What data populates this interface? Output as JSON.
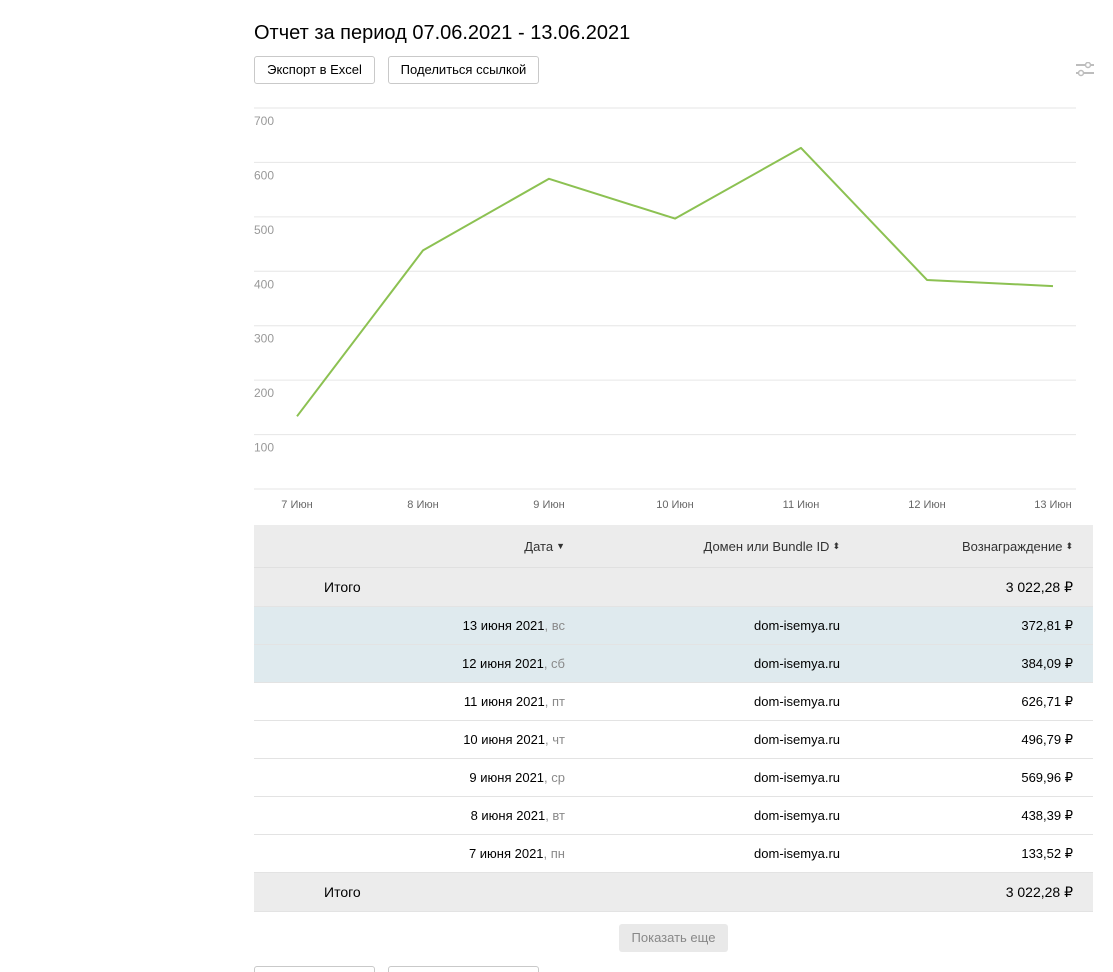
{
  "report": {
    "title": "Отчет за период 07.06.2021 - 13.06.2021"
  },
  "toolbar": {
    "export_label": "Экспорт в Excel",
    "share_label": "Поделиться ссылкой",
    "settings_icon": "sliders-icon"
  },
  "chart_data": {
    "type": "line",
    "categories": [
      "7 Июн",
      "8 Июн",
      "9 Июн",
      "10 Июн",
      "11 Июн",
      "12 Июн",
      "13 Июн"
    ],
    "series": [
      {
        "values": [
          133.52,
          438.39,
          569.96,
          496.79,
          626.71,
          384.09,
          372.81
        ],
        "color": "#8cc152"
      }
    ],
    "yticks": [
      "700",
      "600",
      "500",
      "400",
      "300",
      "200",
      "100"
    ],
    "ylim": [
      0,
      700
    ],
    "grid": true
  },
  "table": {
    "headers": {
      "date": "Дата",
      "domain": "Домен или Bundle ID",
      "reward": "Вознаграждение"
    },
    "sort_icons": {
      "date": "▼",
      "domain": "⬍",
      "reward": "⬍"
    },
    "total_label": "Итого",
    "total_value": "3 022,28 ₽",
    "rows": [
      {
        "date": "13 июня 2021",
        "dow": ", вс",
        "domain": "dom-isemya.ru",
        "reward": "372,81 ₽",
        "highlight": true
      },
      {
        "date": "12 июня 2021",
        "dow": ", сб",
        "domain": "dom-isemya.ru",
        "reward": "384,09 ₽",
        "highlight": true
      },
      {
        "date": "11 июня 2021",
        "dow": ", пт",
        "domain": "dom-isemya.ru",
        "reward": "626,71 ₽",
        "highlight": false
      },
      {
        "date": "10 июня 2021",
        "dow": ", чт",
        "domain": "dom-isemya.ru",
        "reward": "496,79 ₽",
        "highlight": false
      },
      {
        "date": "9 июня 2021",
        "dow": ", ср",
        "domain": "dom-isemya.ru",
        "reward": "569,96 ₽",
        "highlight": false
      },
      {
        "date": "8 июня 2021",
        "dow": ", вт",
        "domain": "dom-isemya.ru",
        "reward": "438,39 ₽",
        "highlight": false
      },
      {
        "date": "7 июня 2021",
        "dow": ", пн",
        "domain": "dom-isemya.ru",
        "reward": "133,52 ₽",
        "highlight": false
      }
    ]
  },
  "pagination": {
    "more_label": "Показать еще"
  }
}
